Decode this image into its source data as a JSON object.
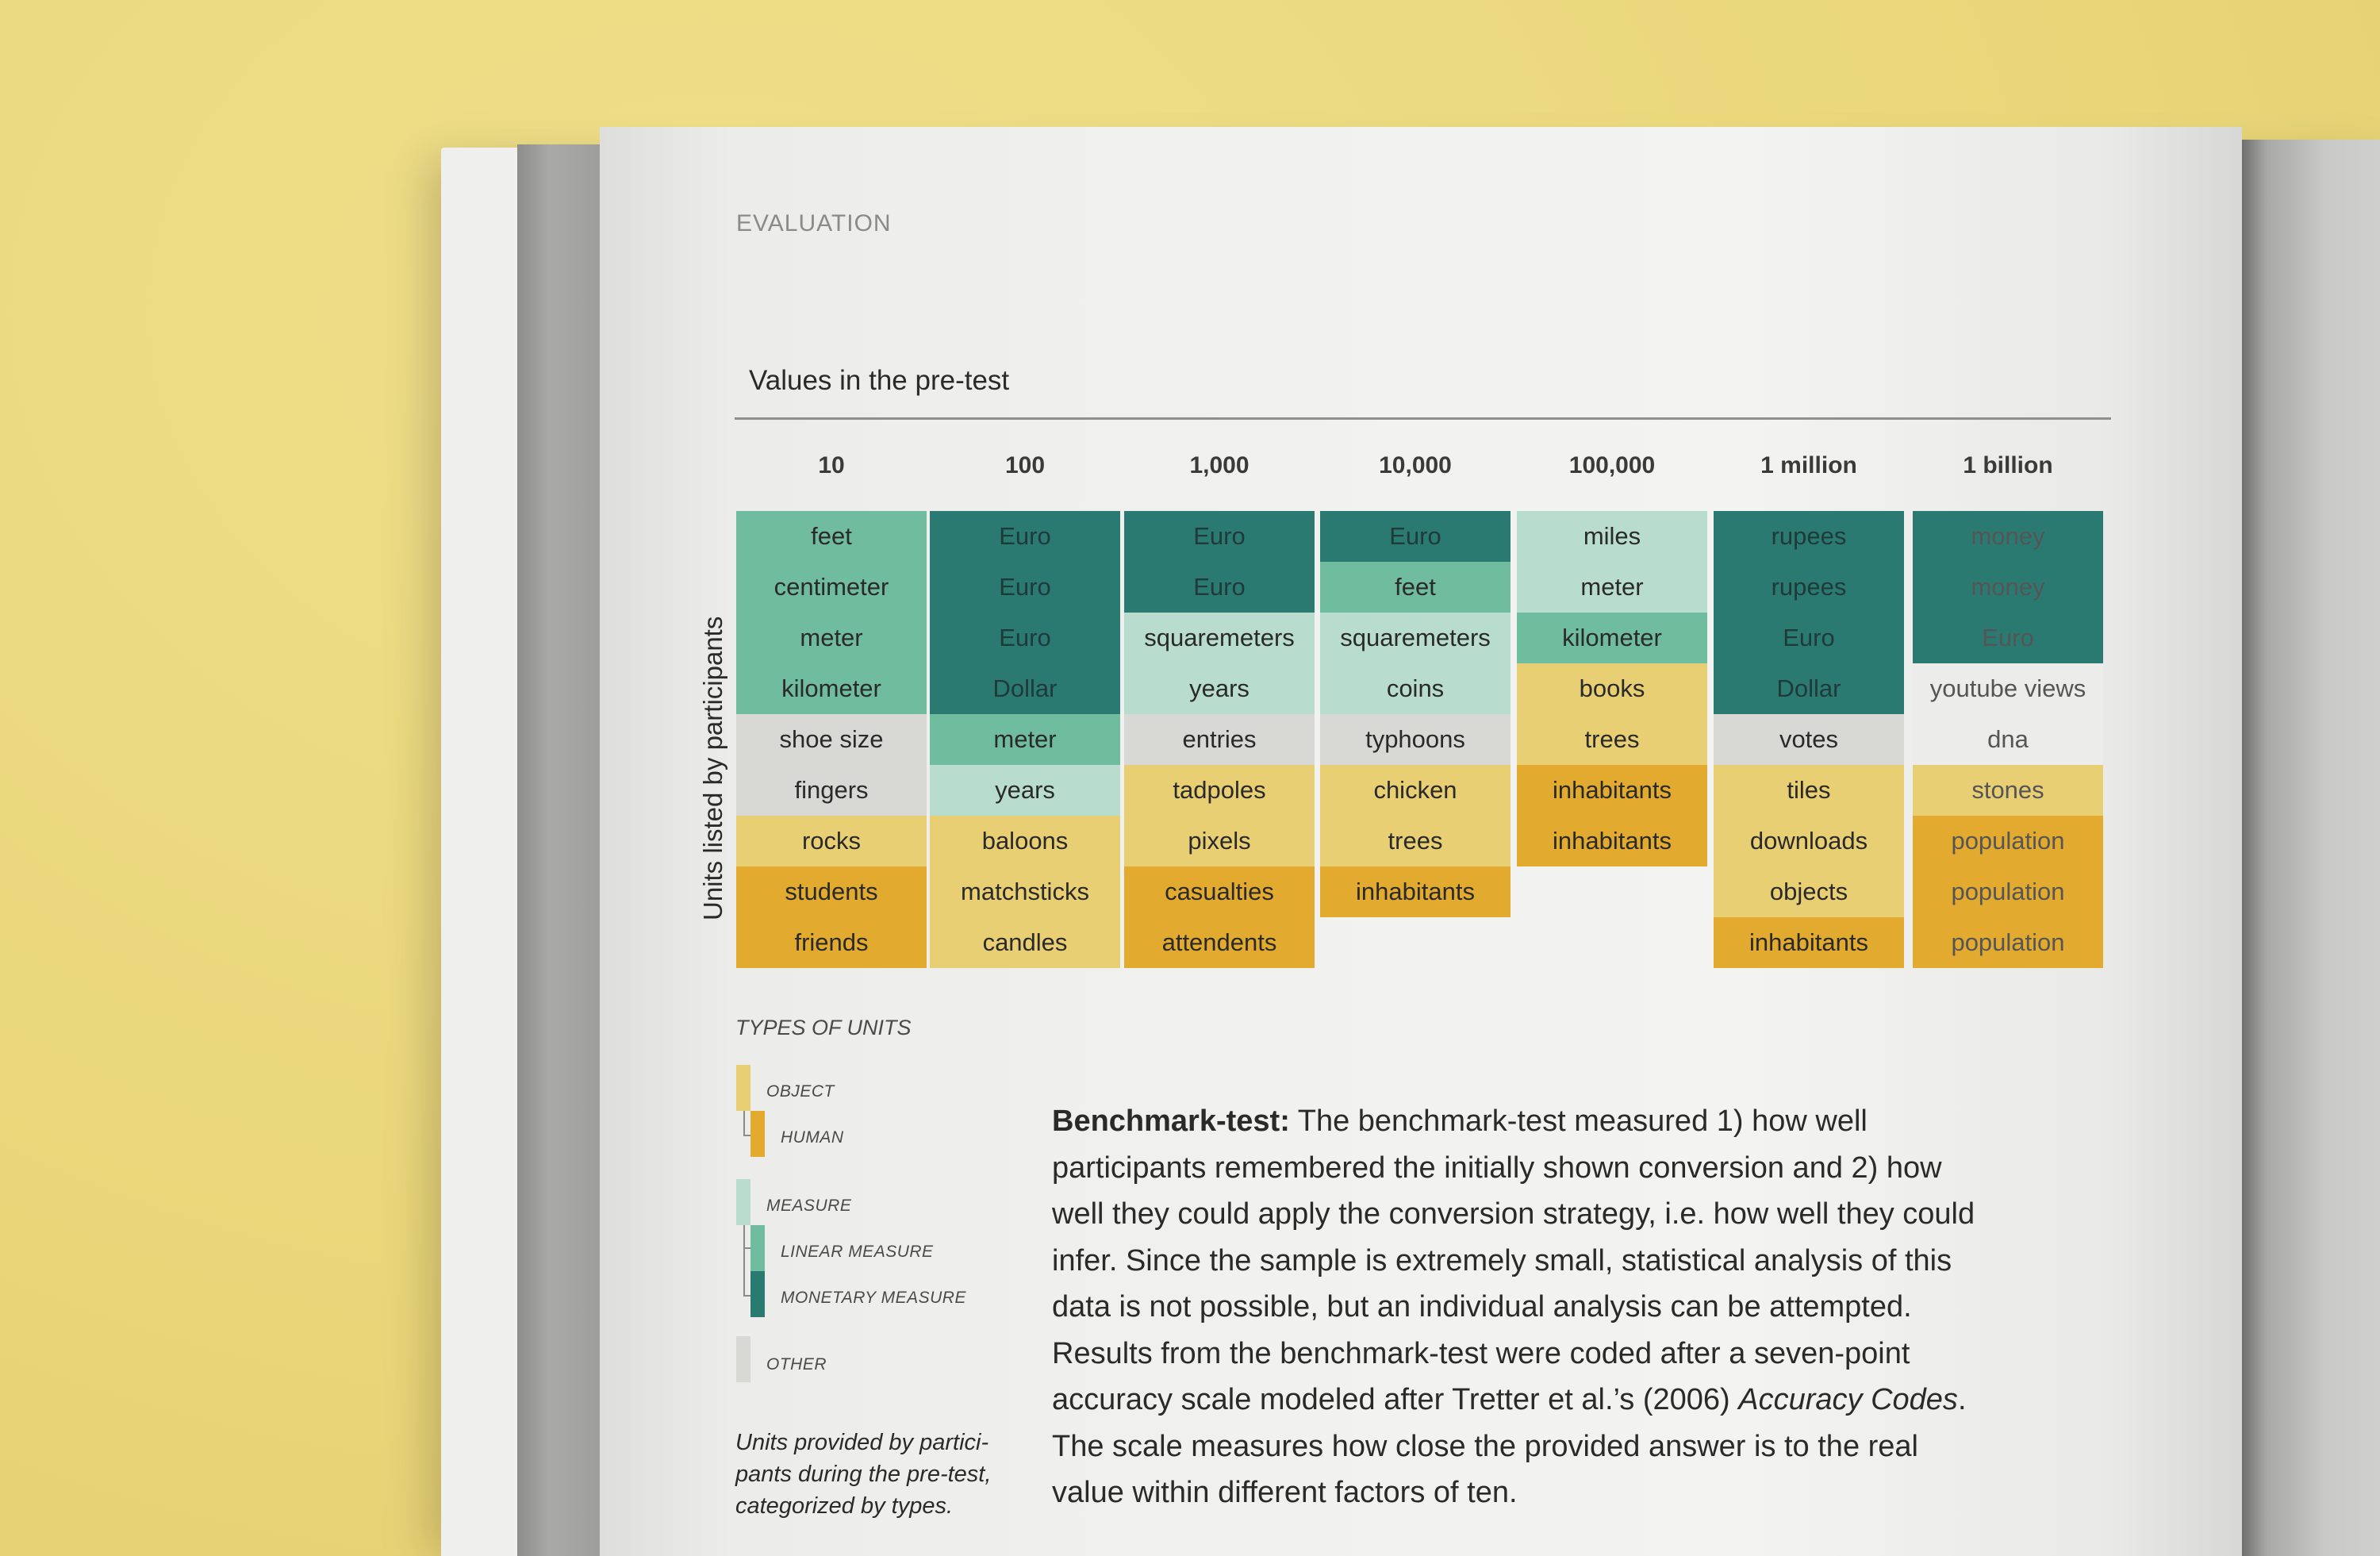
{
  "running_head": "EVALUATION",
  "chart_title": "Values in the pre-test",
  "ylabel": "Units listed by participants",
  "colors": {
    "object": "#e9cf74",
    "human": "#e2aa2e",
    "measure": "#b8dccd",
    "linear": "#6fbc9f",
    "monetary": "#2b7a72",
    "other": "#d8d8d5"
  },
  "columns": [
    {
      "head": "10",
      "cells": [
        {
          "text": "feet",
          "type": "linear"
        },
        {
          "text": "centimeter",
          "type": "linear"
        },
        {
          "text": "meter",
          "type": "linear"
        },
        {
          "text": "kilometer",
          "type": "linear"
        },
        {
          "text": "shoe size",
          "type": "other"
        },
        {
          "text": "fingers",
          "type": "other"
        },
        {
          "text": "rocks",
          "type": "object"
        },
        {
          "text": "students",
          "type": "human"
        },
        {
          "text": "friends",
          "type": "human"
        }
      ]
    },
    {
      "head": "100",
      "cells": [
        {
          "text": "Euro",
          "type": "monetary"
        },
        {
          "text": "Euro",
          "type": "monetary"
        },
        {
          "text": "Euro",
          "type": "monetary"
        },
        {
          "text": "Dollar",
          "type": "monetary"
        },
        {
          "text": "meter",
          "type": "linear"
        },
        {
          "text": "years",
          "type": "measure"
        },
        {
          "text": "baloons",
          "type": "object"
        },
        {
          "text": "matchsticks",
          "type": "object"
        },
        {
          "text": "candles",
          "type": "object"
        }
      ]
    },
    {
      "head": "1,000",
      "cells": [
        {
          "text": "Euro",
          "type": "monetary"
        },
        {
          "text": "Euro",
          "type": "monetary"
        },
        {
          "text": "squaremeters",
          "type": "measure"
        },
        {
          "text": "years",
          "type": "measure"
        },
        {
          "text": "entries",
          "type": "other"
        },
        {
          "text": "tadpoles",
          "type": "object"
        },
        {
          "text": "pixels",
          "type": "object"
        },
        {
          "text": "casualties",
          "type": "human"
        },
        {
          "text": "attendents",
          "type": "human"
        }
      ]
    },
    {
      "head": "10,000",
      "cells": [
        {
          "text": "Euro",
          "type": "monetary"
        },
        {
          "text": "feet",
          "type": "linear"
        },
        {
          "text": "squaremeters",
          "type": "measure"
        },
        {
          "text": "coins",
          "type": "measure"
        },
        {
          "text": "typhoons",
          "type": "other"
        },
        {
          "text": "chicken",
          "type": "object"
        },
        {
          "text": "trees",
          "type": "object"
        },
        {
          "text": "inhabitants",
          "type": "human"
        }
      ]
    },
    {
      "head": "100,000",
      "cells": [
        {
          "text": "miles",
          "type": "measure"
        },
        {
          "text": "meter",
          "type": "measure"
        },
        {
          "text": "kilometer",
          "type": "linear"
        },
        {
          "text": "books",
          "type": "object"
        },
        {
          "text": "trees",
          "type": "object"
        },
        {
          "text": "inhabitants",
          "type": "human"
        },
        {
          "text": "inhabitants",
          "type": "human"
        }
      ]
    },
    {
      "head": "1 million",
      "cells": [
        {
          "text": "rupees",
          "type": "monetary"
        },
        {
          "text": "rupees",
          "type": "monetary"
        },
        {
          "text": "Euro",
          "type": "monetary"
        },
        {
          "text": "Dollar",
          "type": "monetary"
        },
        {
          "text": "votes",
          "type": "other"
        },
        {
          "text": "tiles",
          "type": "object"
        },
        {
          "text": "downloads",
          "type": "object"
        },
        {
          "text": "objects",
          "type": "object"
        },
        {
          "text": "inhabitants",
          "type": "human"
        }
      ]
    },
    {
      "head": "1 billion",
      "cells": [
        {
          "text": "money",
          "type": "monetary"
        },
        {
          "text": "money",
          "type": "monetary"
        },
        {
          "text": "Euro",
          "type": "monetary"
        },
        {
          "text": "youtube views",
          "type": "other"
        },
        {
          "text": "dna",
          "type": "other"
        },
        {
          "text": "stones",
          "type": "object"
        },
        {
          "text": "population",
          "type": "human"
        },
        {
          "text": "population",
          "type": "human"
        },
        {
          "text": "population",
          "type": "human"
        }
      ]
    }
  ],
  "legend": {
    "title": "TYPES OF UNITS",
    "object": "OBJECT",
    "human": "HUMAN",
    "measure": "MEASURE",
    "linear": "LINEAR MEASURE",
    "monetary": "MONETARY MEASURE",
    "other": "OTHER"
  },
  "caption": "Units provided by partici- pants during the pre-test, categorized by types.",
  "body": {
    "lead": "Benchmark-test:",
    "text1": " The benchmark-test measured 1) how well participants remembered the initially shown conversion and 2) how well they could apply the conversion strategy, i.e. how well they could infer. Since the sample is extremely small, statistical analysis of this data is not possible, but an individual analysis can be attempted. Results from the benchmark-test were coded after a seven-point accuracy scale modeled after Tretter et al.’s (2006) ",
    "italic": "Accuracy Codes",
    "text2": ". The scale measures how close the provided answer is to the real value within different factors of ten."
  }
}
